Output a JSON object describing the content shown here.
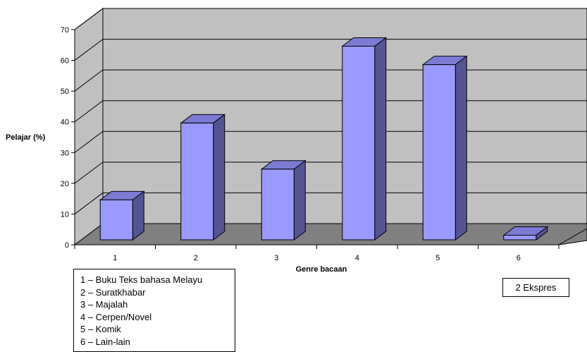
{
  "chart_data": {
    "type": "bar",
    "categories": [
      "1",
      "2",
      "3",
      "4",
      "5",
      "6"
    ],
    "values": [
      13,
      38,
      23,
      63,
      57,
      1.5
    ],
    "ylabel": "Pelajar (%)",
    "xlabel": "Genre bacaan",
    "ylim": [
      0,
      70
    ],
    "yticks": [
      "0",
      "10",
      "20",
      "30",
      "40",
      "50",
      "60",
      "70"
    ],
    "grid": true,
    "three_d": true,
    "colors": {
      "bar_front": "#9999ff",
      "bar_side": "#545493",
      "bar_top": "#7b7bd6",
      "back_wall": "#c0c0c0",
      "floor": "#808080"
    },
    "legend": [
      "1 – Buku Teks bahasa Melayu",
      "2 – Suratkhabar",
      "3 – Majalah",
      "4 – Cerpen/Novel",
      "5 – Komik",
      "6 – Lain-lain"
    ],
    "annotation": "2 Ekspres"
  }
}
